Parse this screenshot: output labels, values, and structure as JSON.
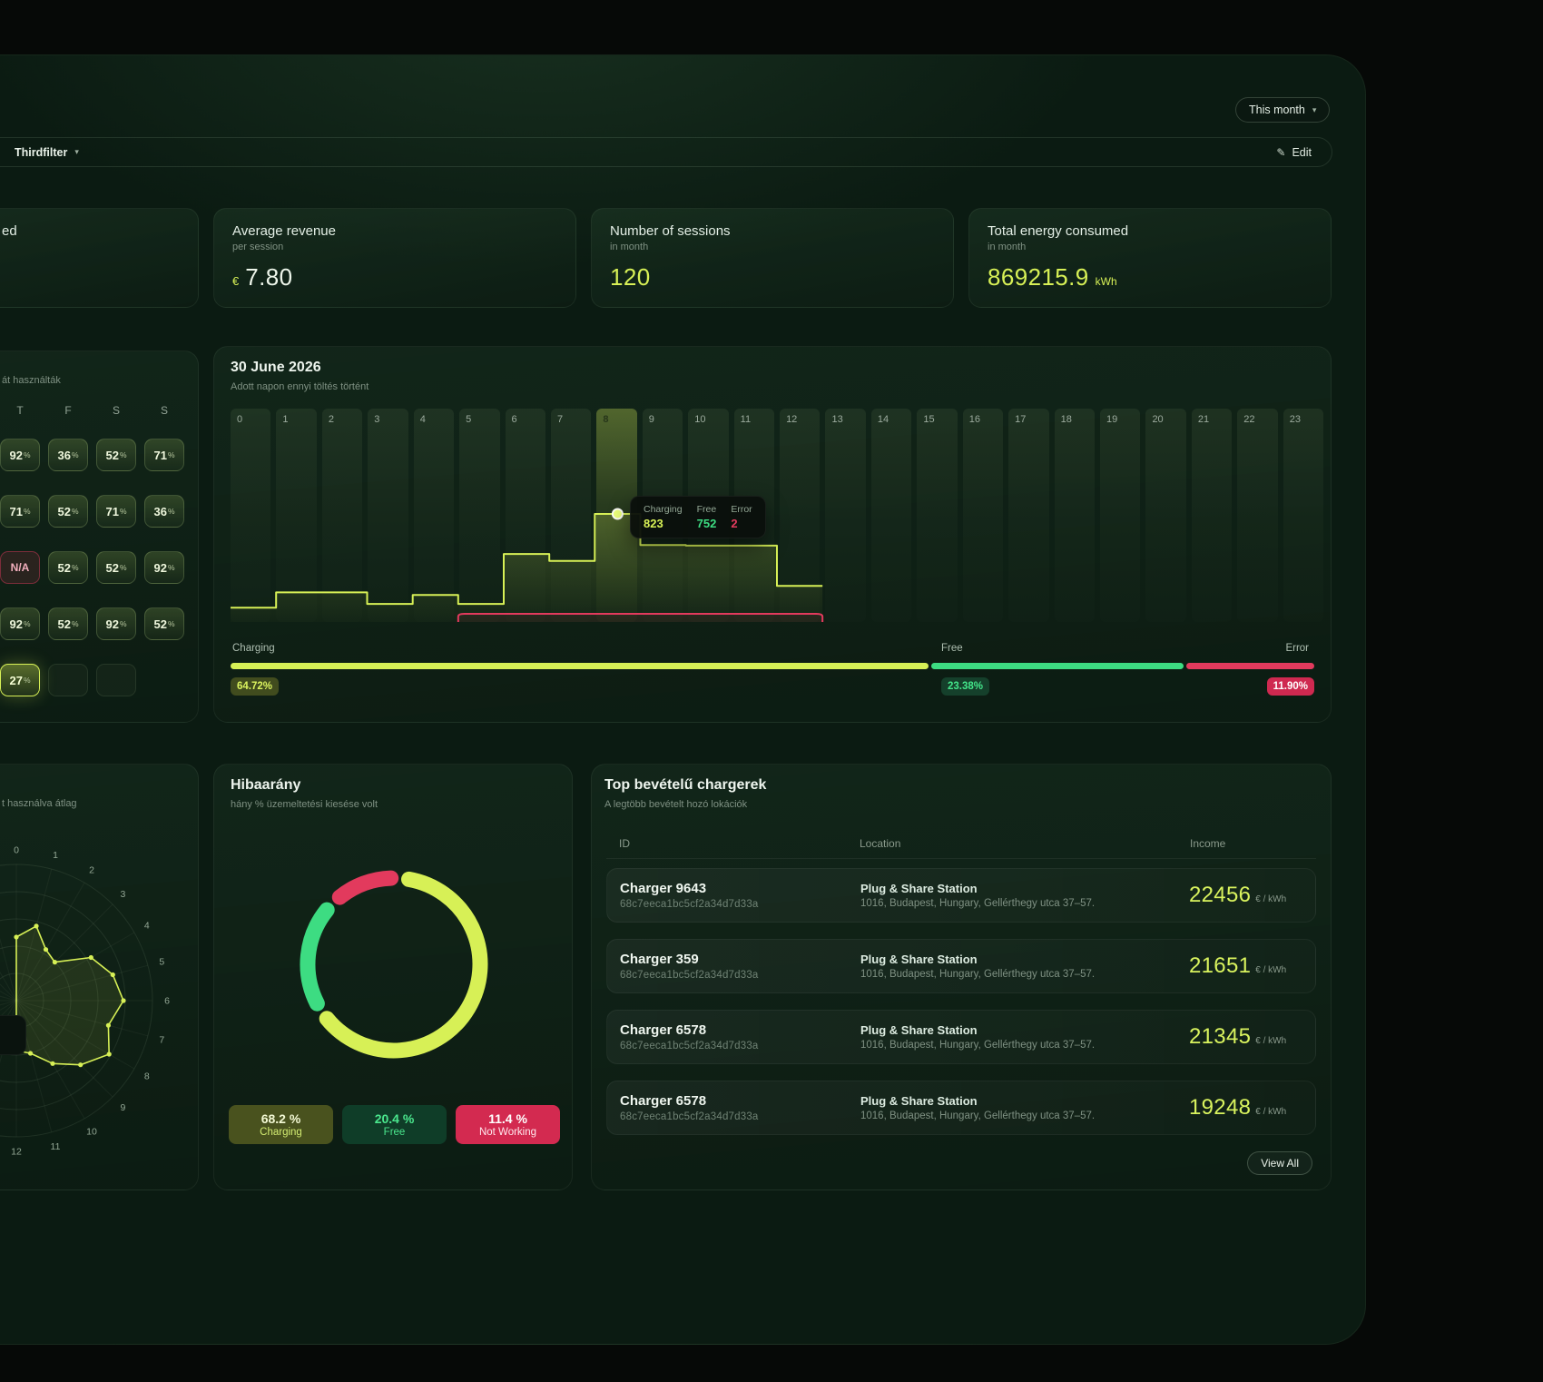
{
  "theme": {
    "accent": "#d7f056",
    "green": "#3ddc82",
    "red": "#e23a5d"
  },
  "header": {
    "period_button": "This month",
    "filter_label": "Thirdfilter",
    "edit_label": "Edit"
  },
  "stats": [
    {
      "title": "ed"
    },
    {
      "title": "Average revenue",
      "subtitle": "per session",
      "currency": "€",
      "value": "7.80"
    },
    {
      "title": "Number of sessions",
      "subtitle": "in month",
      "value": "120"
    },
    {
      "title": "Total energy consumed",
      "subtitle": "in month",
      "value": "869215.9",
      "unit": "kWh"
    }
  ],
  "usage_grid": {
    "subtitle": "át használták",
    "day_headers": [
      "T",
      "F",
      "S",
      "S"
    ],
    "rows": [
      [
        {
          "v": "92"
        },
        {
          "v": "36"
        },
        {
          "v": "52"
        },
        {
          "v": "71"
        }
      ],
      [
        {
          "v": "71"
        },
        {
          "v": "52"
        },
        {
          "v": "71"
        },
        {
          "v": "36"
        }
      ],
      [
        {
          "v": "N/A",
          "state": "error"
        },
        {
          "v": "52"
        },
        {
          "v": "52"
        },
        {
          "v": "92"
        }
      ],
      [
        {
          "v": "92"
        },
        {
          "v": "52"
        },
        {
          "v": "92"
        },
        {
          "v": "52"
        }
      ],
      [
        {
          "v": "27",
          "state": "active"
        },
        {
          "v": ""
        },
        {
          "v": ""
        },
        null
      ]
    ]
  },
  "chart_data": [
    {
      "id": "daily-charging-by-hour",
      "type": "area",
      "title": "30 June 2026",
      "subtitle": "Adott napon ennyi töltés történt",
      "x": [
        "0",
        "1",
        "2",
        "3",
        "4",
        "5",
        "6",
        "7",
        "8",
        "9",
        "10",
        "11",
        "12",
        "13",
        "14",
        "15",
        "16",
        "17",
        "18",
        "19",
        "20",
        "21",
        "22",
        "23"
      ],
      "highlight_x": 8,
      "series": [
        {
          "name": "Charging",
          "color": "#d7f056",
          "values": [
            90,
            210,
            210,
            120,
            190,
            120,
            510,
            455,
            823,
            580,
            575,
            575,
            260
          ]
        },
        {
          "name": "Error",
          "color": "#e23a5d",
          "values": [
            0,
            0,
            0,
            0,
            0,
            2,
            2,
            2,
            2,
            2,
            2,
            2,
            2
          ]
        }
      ],
      "tooltip": {
        "x": 8,
        "rows": [
          {
            "label": "Charging",
            "value": 823,
            "color": "#d7f056"
          },
          {
            "label": "Free",
            "value": 752,
            "color": "#3ddc82"
          },
          {
            "label": "Error",
            "value": 2,
            "color": "#e23a5d"
          }
        ]
      }
    },
    {
      "id": "status-distribution",
      "type": "bar",
      "segments": [
        {
          "label": "Charging",
          "value": 64.72,
          "display": "64.72%",
          "color": "#d7f056"
        },
        {
          "label": "Free",
          "value": 23.38,
          "display": "23.38%",
          "color": "#3ddc82"
        },
        {
          "label": "Error",
          "value": 11.9,
          "display": "11.90%",
          "color": "#e23a5d"
        }
      ]
    },
    {
      "id": "error-rate",
      "type": "pie",
      "title": "Hibaarány",
      "subtitle": "hány % üzemeltetési kiesése volt",
      "slices": [
        {
          "label": "Charging",
          "value": 68.2,
          "display": "68.2 %",
          "color": "#d7f056"
        },
        {
          "label": "Free",
          "value": 20.4,
          "display": "20.4 %",
          "color": "#3ddc82"
        },
        {
          "label": "Not Working",
          "value": 11.4,
          "display": "11.4 %",
          "color": "#e23a5d"
        }
      ]
    },
    {
      "id": "usage-radar",
      "type": "radar",
      "subtitle": "t használva átlag",
      "axis_labels": [
        "0",
        "1",
        "2",
        "3",
        "4",
        "5",
        "6",
        "7",
        "8",
        "9",
        "10",
        "11",
        "12"
      ],
      "values": [
        70,
        85,
        65,
        60,
        95,
        110,
        118,
        105,
        118,
        100,
        80,
        60,
        55
      ]
    }
  ],
  "chargers": {
    "title": "Top bevételű chargerek",
    "subtitle": "A legtöbb bevételt hozó lokációk",
    "columns": {
      "id": "ID",
      "location": "Location",
      "income": "Income"
    },
    "view_all": "View All",
    "rows": [
      {
        "id": "Charger 9643",
        "hash": "68c7eeca1bc5cf2a34d7d33a",
        "location_name": "Plug & Share Station",
        "address": "1016, Budapest, Hungary, Gellérthegy utca 37–57.",
        "income": "22456",
        "unit": "€ / kWh"
      },
      {
        "id": "Charger 359",
        "hash": "68c7eeca1bc5cf2a34d7d33a",
        "location_name": "Plug & Share Station",
        "address": "1016, Budapest, Hungary, Gellérthegy utca 37–57.",
        "income": "21651",
        "unit": "€ / kWh"
      },
      {
        "id": "Charger 6578",
        "hash": "68c7eeca1bc5cf2a34d7d33a",
        "location_name": "Plug & Share Station",
        "address": "1016, Budapest, Hungary, Gellérthegy utca 37–57.",
        "income": "21345",
        "unit": "€ / kWh"
      },
      {
        "id": "Charger 6578",
        "hash": "68c7eeca1bc5cf2a34d7d33a",
        "location_name": "Plug & Share Station",
        "address": "1016, Budapest, Hungary, Gellérthegy utca 37–57.",
        "income": "19248",
        "unit": "€ / kWh"
      }
    ]
  }
}
